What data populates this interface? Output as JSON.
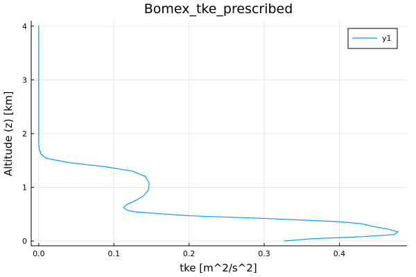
{
  "chart_data": {
    "type": "line",
    "title": "Bomex_tke_prescribed",
    "xlabel": "tke [m^2/s^2]",
    "ylabel": "Altitude (z) [km]",
    "xlim": [
      -0.01,
      0.49
    ],
    "ylim": [
      -0.09,
      4.1
    ],
    "xticks": [
      0.0,
      0.1,
      0.2,
      0.3,
      0.4
    ],
    "xtick_labels": [
      "0.0",
      "0.1",
      "0.2",
      "0.3",
      "0.4"
    ],
    "yticks": [
      0,
      1,
      2,
      3,
      4
    ],
    "ytick_labels": [
      "0",
      "1",
      "2",
      "3",
      "4"
    ],
    "grid": true,
    "legend": {
      "position": "top-right"
    },
    "series": [
      {
        "name": "y1",
        "color": "#009AFA",
        "x": [
          0.327,
          0.36,
          0.43,
          0.473,
          0.478,
          0.465,
          0.445,
          0.43,
          0.4,
          0.3,
          0.2,
          0.16,
          0.13,
          0.118,
          0.113,
          0.117,
          0.13,
          0.14,
          0.146,
          0.147,
          0.142,
          0.125,
          0.09,
          0.04,
          0.01,
          0.003,
          0.001,
          0.0,
          0.0,
          0.0,
          0.0
        ],
        "y": [
          0.0,
          0.04,
          0.08,
          0.12,
          0.17,
          0.22,
          0.27,
          0.32,
          0.36,
          0.42,
          0.47,
          0.51,
          0.54,
          0.57,
          0.62,
          0.68,
          0.76,
          0.85,
          0.95,
          1.08,
          1.2,
          1.3,
          1.38,
          1.46,
          1.54,
          1.62,
          1.7,
          1.8,
          2.5,
          3.3,
          4.0
        ]
      }
    ]
  }
}
